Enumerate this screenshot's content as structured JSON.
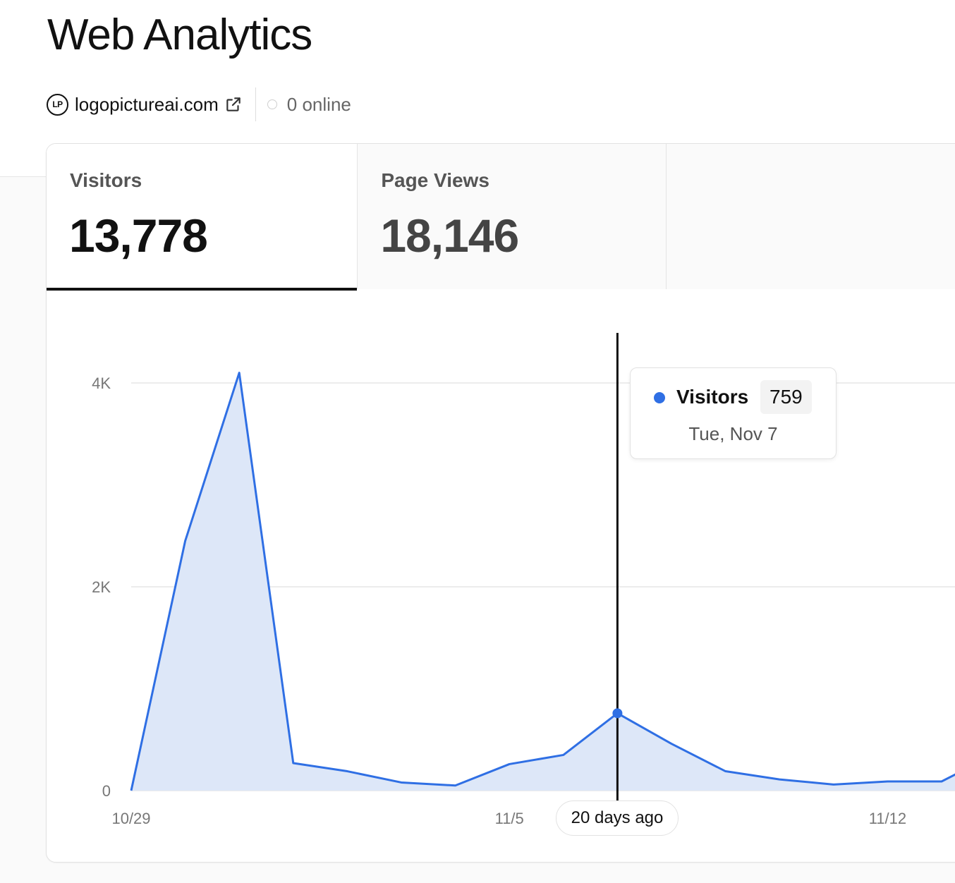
{
  "page": {
    "title": "Web Analytics"
  },
  "site": {
    "logo_text": "LP",
    "domain": "logopictureai.com",
    "online_text": "0 online"
  },
  "tabs": [
    {
      "label": "Visitors",
      "value": "13,778",
      "active": true
    },
    {
      "label": "Page Views",
      "value": "18,146",
      "active": false
    },
    {
      "label": "",
      "value": "",
      "active": false
    }
  ],
  "tooltip": {
    "series": "Visitors",
    "value": "759",
    "date": "Tue, Nov 7"
  },
  "cursor_label": "20 days ago",
  "colors": {
    "line": "#2f6fe4",
    "area": "#dde7f8",
    "grid": "#e6e6e6",
    "cursor": "#111111"
  },
  "chart_data": {
    "type": "area",
    "series": [
      {
        "name": "Visitors",
        "values": [
          0,
          2450,
          4100,
          270,
          190,
          80,
          50,
          260,
          350,
          759,
          460,
          190,
          110,
          60,
          90,
          90,
          360
        ]
      }
    ],
    "x": [
      "10/29",
      "10/30",
      "10/31",
      "11/1",
      "11/2",
      "11/3",
      "11/4",
      "11/5",
      "11/6",
      "11/7",
      "11/8",
      "11/9",
      "11/10",
      "11/11",
      "11/12",
      "11/13",
      "11/14"
    ],
    "x_tick_labels": [
      "10/29",
      "11/5",
      "11/12"
    ],
    "y_tick_labels": [
      "0",
      "2K",
      "4K"
    ],
    "y_ticks": [
      0,
      2000,
      4000
    ],
    "ylim": [
      0,
      4000
    ],
    "highlight_index": 9,
    "grid": true
  }
}
